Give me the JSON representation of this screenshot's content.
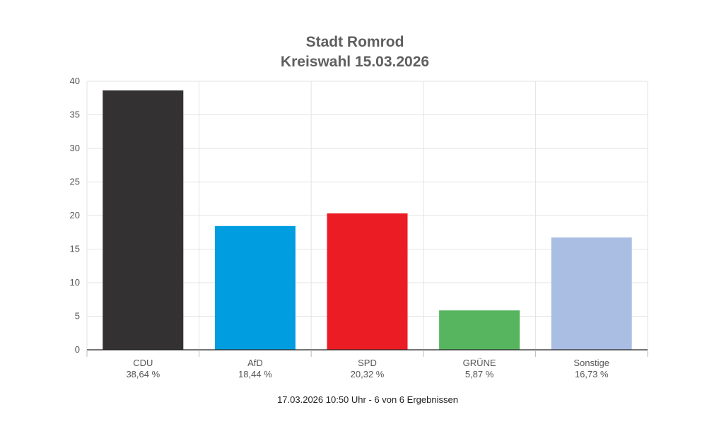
{
  "chart_data": {
    "type": "bar",
    "title": "Stadt Romrod",
    "subtitle": "Kreiswahl 15.03.2026",
    "categories": [
      "CDU",
      "AfD",
      "SPD",
      "GRÜNE",
      "Sonstige"
    ],
    "values": [
      38.64,
      18.44,
      20.32,
      5.87,
      16.73
    ],
    "value_labels": [
      "38,64 %",
      "18,44 %",
      "20,32 %",
      "5,87 %",
      "16,73 %"
    ],
    "colors": [
      "#333132",
      "#009ee0",
      "#ec1c24",
      "#57b560",
      "#aabee3"
    ],
    "yticks": [
      "0",
      "5",
      "10",
      "15",
      "20",
      "25",
      "30",
      "35",
      "40"
    ],
    "ylim": [
      0,
      40
    ],
    "ytick_step": 5,
    "xlabel": "",
    "ylabel": "",
    "grid": true,
    "legend": "none"
  },
  "footer": "17.03.2026 10:50 Uhr - 6 von 6 Ergebnissen"
}
